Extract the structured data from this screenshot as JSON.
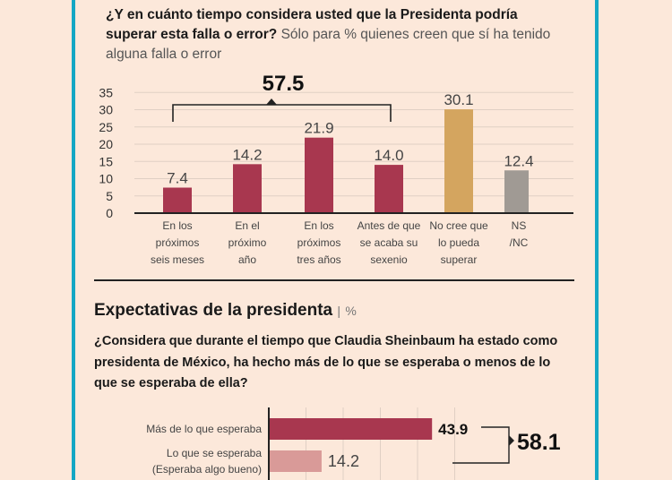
{
  "colors": {
    "accent_border": "#14a7c4",
    "bar_primary": "#a8374f",
    "bar_gold": "#d4a55f",
    "bar_gray": "#a09a94",
    "bar_light": "#d99a98",
    "background": "#fce8da"
  },
  "question1": {
    "bold": "¿Y en cuánto tiempo considera usted que la Presidenta podría superar esta falla o error?",
    "note": "Sólo para % quienes creen que sí ha tenido alguna falla o error"
  },
  "section2": {
    "title": "Expectativas de la presidenta",
    "unit": "%",
    "question": "¿Considera que durante el tiempo que Claudia Sheinbaum ha estado como presidenta de México, ha hecho más de lo que se esperaba o menos de lo que se esperaba de ella?"
  },
  "chart_data": [
    {
      "type": "bar",
      "categories": [
        "En los próximos seis meses",
        "En el próximo año",
        "En los próximos tres años",
        "Antes de que se acaba su sexenio",
        "No cree que lo pueda superar",
        "NS /NC"
      ],
      "category_lines": [
        [
          "En los",
          "próximos",
          "seis meses"
        ],
        [
          "En el",
          "próximo",
          "año"
        ],
        [
          "En los",
          "próximos",
          "tres años"
        ],
        [
          "Antes de que",
          "se acaba su",
          "sexenio"
        ],
        [
          "No cree que",
          "lo pueda",
          "superar"
        ],
        [
          "NS",
          "/NC"
        ]
      ],
      "values": [
        7.4,
        14.2,
        21.9,
        14.0,
        30.1,
        12.4
      ],
      "value_labels": [
        "7.4",
        "14.2",
        "21.9",
        "14.0",
        "30.1",
        "12.4"
      ],
      "bar_colors": [
        "#a8374f",
        "#a8374f",
        "#a8374f",
        "#a8374f",
        "#d4a55f",
        "#a09a94"
      ],
      "ylim": [
        0,
        35
      ],
      "yticks": [
        "0",
        "5",
        "10",
        "15",
        "20",
        "25",
        "30",
        "35"
      ],
      "grid": true,
      "annotation": {
        "text": "57.5",
        "spans": [
          0,
          3
        ]
      }
    },
    {
      "type": "bar",
      "orientation": "horizontal",
      "categories": [
        [
          "Más de lo que esperaba"
        ],
        [
          "Lo que se esperaba",
          "(Esperaba algo bueno)"
        ]
      ],
      "values": [
        43.9,
        14.2
      ],
      "value_labels": [
        "43.9",
        "14.2"
      ],
      "bar_colors": [
        "#a8374f",
        "#d99a98"
      ],
      "grid": true,
      "annotation": {
        "text": "58.1",
        "spans": [
          0,
          1
        ]
      }
    }
  ]
}
